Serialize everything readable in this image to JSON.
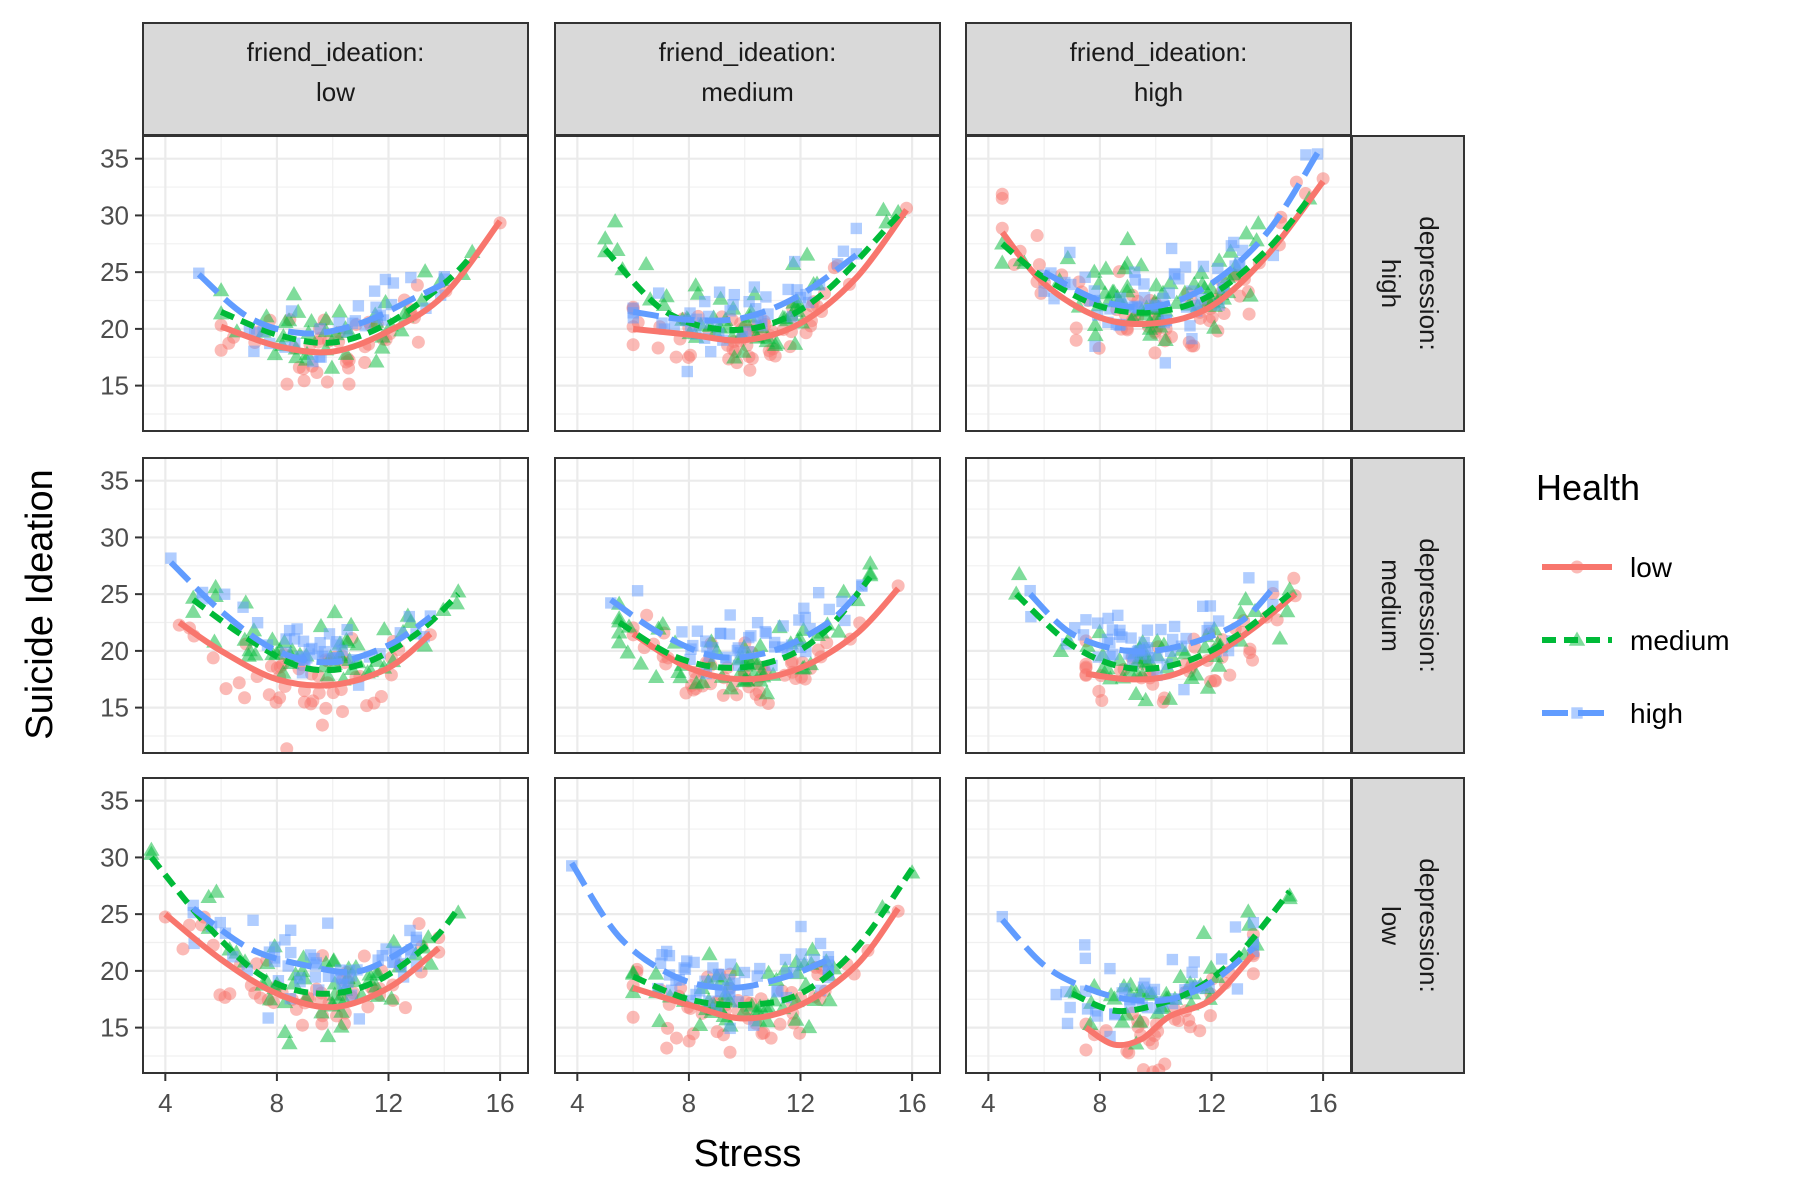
{
  "chart_data": {
    "type": "scatter",
    "xlabel": "Stress",
    "ylabel": "Suicide Ideation",
    "xlim": [
      3.2,
      17.0
    ],
    "ylim": [
      11.0,
      37.0
    ],
    "x_ticks": [
      4,
      8,
      12,
      16
    ],
    "y_ticks": [
      15,
      20,
      25,
      30,
      35
    ],
    "grid": true,
    "legend": {
      "title": "Health",
      "placement": "right",
      "entries": [
        {
          "label": "low",
          "color": "#F8766D",
          "shape": "circle",
          "linetype": "solid"
        },
        {
          "label": "medium",
          "color": "#00BA38",
          "shape": "triangle",
          "linetype": "dashed"
        },
        {
          "label": "high",
          "color": "#619CFF",
          "shape": "square",
          "linetype": "longdash"
        }
      ]
    },
    "columns": [
      "friend_ideation:\nlow",
      "friend_ideation:\nmedium",
      "friend_ideation:\nhigh"
    ],
    "rows": [
      "depression:\nhigh",
      "depression:\nmedium",
      "depression:\nlow"
    ],
    "panels": [
      {
        "row": 0,
        "col": 0,
        "series": [
          {
            "group": "low",
            "x": [
              6,
              8,
              10,
              12,
              14,
              16
            ],
            "y": [
              20.2,
              18.5,
              18.0,
              19.8,
              23.0,
              29.5
            ],
            "scatter": {
              "center": [
                10,
                18.5
              ],
              "spread": [
                2.0,
                2.2
              ],
              "n": 45
            }
          },
          {
            "group": "medium",
            "x": [
              6,
              8,
              10,
              12,
              14,
              15
            ],
            "y": [
              21.5,
              19.5,
              18.8,
              20.5,
              24.0,
              26.5
            ],
            "scatter": {
              "center": [
                10,
                19.5
              ],
              "spread": [
                2.2,
                2.0
              ],
              "n": 40
            }
          },
          {
            "group": "high",
            "x": [
              5.2,
              7,
              9,
              11,
              13,
              14
            ],
            "y": [
              24.8,
              21.0,
              19.6,
              20.5,
              22.8,
              24.0
            ],
            "scatter": {
              "center": [
                10,
                20.5
              ],
              "spread": [
                2.0,
                2.0
              ],
              "n": 30
            }
          }
        ]
      },
      {
        "row": 0,
        "col": 1,
        "series": [
          {
            "group": "low",
            "x": [
              6,
              8,
              10,
              12,
              14,
              15.8
            ],
            "y": [
              20.0,
              19.5,
              19.0,
              20.5,
              24.5,
              30.5
            ],
            "scatter": {
              "center": [
                10,
                19.5
              ],
              "spread": [
                2.2,
                2.2
              ],
              "n": 60
            }
          },
          {
            "group": "medium",
            "x": [
              5,
              7,
              9,
              11,
              13,
              15.5
            ],
            "y": [
              27.0,
              21.8,
              20.0,
              20.5,
              23.5,
              30.0
            ],
            "scatter": {
              "center": [
                10,
                20.5
              ],
              "spread": [
                2.2,
                2.0
              ],
              "n": 55
            }
          },
          {
            "group": "high",
            "x": [
              6,
              8,
              10,
              12,
              14
            ],
            "y": [
              21.5,
              20.8,
              21.0,
              23.0,
              26.5
            ],
            "scatter": {
              "center": [
                10,
                21.5
              ],
              "spread": [
                2.0,
                1.8
              ],
              "n": 45
            }
          }
        ]
      },
      {
        "row": 0,
        "col": 2,
        "series": [
          {
            "group": "low",
            "x": [
              4.5,
              6,
              8,
              10,
              12,
              14,
              16
            ],
            "y": [
              28.5,
              24.0,
              21.0,
              20.5,
              22.0,
              26.5,
              33.0
            ],
            "scatter": {
              "center": [
                10,
                21.5
              ],
              "spread": [
                2.3,
                2.5
              ],
              "n": 70
            }
          },
          {
            "group": "medium",
            "x": [
              4.5,
              6,
              8,
              10,
              12,
              14,
              15.5
            ],
            "y": [
              27.5,
              24.5,
              22.0,
              21.5,
              23.0,
              27.0,
              31.5
            ],
            "scatter": {
              "center": [
                10,
                22.5
              ],
              "spread": [
                2.3,
                2.5
              ],
              "n": 70
            }
          },
          {
            "group": "high",
            "x": [
              6,
              8,
              10,
              12,
              14,
              15.8
            ],
            "y": [
              25.0,
              22.5,
              22.0,
              24.0,
              28.5,
              35.5
            ],
            "scatter": {
              "center": [
                10,
                23.0
              ],
              "spread": [
                2.2,
                2.5
              ],
              "n": 60
            }
          }
        ]
      },
      {
        "row": 1,
        "col": 0,
        "series": [
          {
            "group": "low",
            "x": [
              4.5,
              6,
              8,
              10,
              12,
              13.5
            ],
            "y": [
              22.5,
              20.0,
              17.5,
              17.0,
              18.5,
              21.5
            ],
            "scatter": {
              "center": [
                9.5,
                17.5
              ],
              "spread": [
                2.0,
                2.0
              ],
              "n": 50
            }
          },
          {
            "group": "medium",
            "x": [
              5,
              7,
              9,
              11,
              13,
              14.5
            ],
            "y": [
              24.5,
              21.0,
              18.5,
              18.8,
              21.5,
              25.0
            ],
            "scatter": {
              "center": [
                9.5,
                19.0
              ],
              "spread": [
                2.2,
                2.0
              ],
              "n": 50
            }
          },
          {
            "group": "high",
            "x": [
              4.2,
              6,
              8,
              10,
              12,
              13.5
            ],
            "y": [
              27.8,
              23.5,
              20.0,
              19.0,
              20.5,
              23.0
            ],
            "scatter": {
              "center": [
                9.5,
                20.0
              ],
              "spread": [
                2.0,
                2.0
              ],
              "n": 40
            }
          }
        ]
      },
      {
        "row": 1,
        "col": 1,
        "series": [
          {
            "group": "low",
            "x": [
              6,
              8,
              10,
              12,
              14,
              15.5
            ],
            "y": [
              21.5,
              18.5,
              17.5,
              18.5,
              21.5,
              25.5
            ],
            "scatter": {
              "center": [
                10,
                18.5
              ],
              "spread": [
                2.2,
                2.0
              ],
              "n": 55
            }
          },
          {
            "group": "medium",
            "x": [
              5.5,
              7.5,
              9.5,
              11.5,
              13,
              14.5
            ],
            "y": [
              22.5,
              19.5,
              18.5,
              19.5,
              22.0,
              26.5
            ],
            "scatter": {
              "center": [
                10,
                19.8
              ],
              "spread": [
                2.2,
                2.0
              ],
              "n": 55
            }
          },
          {
            "group": "high",
            "x": [
              5.2,
              7,
              9,
              11,
              13,
              14.2
            ],
            "y": [
              24.5,
              21.5,
              19.5,
              20.0,
              22.5,
              25.5
            ],
            "scatter": {
              "center": [
                10,
                20.5
              ],
              "spread": [
                2.0,
                2.0
              ],
              "n": 45
            }
          }
        ]
      },
      {
        "row": 1,
        "col": 2,
        "series": [
          {
            "group": "low",
            "x": [
              7.5,
              9,
              10.5,
              12,
              13.5,
              15
            ],
            "y": [
              18.0,
              17.5,
              17.8,
              19.5,
              22.0,
              25.0
            ],
            "scatter": {
              "center": [
                10.5,
                18.5
              ],
              "spread": [
                2.0,
                2.0
              ],
              "n": 45
            }
          },
          {
            "group": "medium",
            "x": [
              5,
              7,
              9,
              11,
              13,
              14.8
            ],
            "y": [
              25.0,
              20.5,
              18.5,
              19.0,
              21.5,
              25.0
            ],
            "scatter": {
              "center": [
                10,
                19.5
              ],
              "spread": [
                2.2,
                2.0
              ],
              "n": 50
            }
          },
          {
            "group": "high",
            "x": [
              5.5,
              7,
              9,
              11,
              13,
              14.2
            ],
            "y": [
              25.0,
              21.5,
              20.0,
              20.5,
              22.5,
              25.5
            ],
            "scatter": {
              "center": [
                10,
                20.5
              ],
              "spread": [
                2.0,
                2.0
              ],
              "n": 50
            }
          }
        ]
      },
      {
        "row": 2,
        "col": 0,
        "series": [
          {
            "group": "low",
            "x": [
              4,
              6,
              8,
              10,
              12,
              13.8
            ],
            "y": [
              25.0,
              21.0,
              18.0,
              16.8,
              18.5,
              22.0
            ],
            "scatter": {
              "center": [
                9.5,
                18.0
              ],
              "spread": [
                2.2,
                2.2
              ],
              "n": 55
            }
          },
          {
            "group": "medium",
            "x": [
              3.5,
              5.5,
              7.5,
              9.5,
              11.5,
              13.5,
              14.5
            ],
            "y": [
              30.0,
              24.0,
              19.5,
              18.0,
              19.0,
              22.5,
              25.5
            ],
            "scatter": {
              "center": [
                9.5,
                18.8
              ],
              "spread": [
                2.3,
                2.2
              ],
              "n": 55
            }
          },
          {
            "group": "high",
            "x": [
              5,
              7,
              9,
              11,
              13
            ],
            "y": [
              25.5,
              22.0,
              20.5,
              20.0,
              22.5
            ],
            "scatter": {
              "center": [
                9.5,
                20.0
              ],
              "spread": [
                2.2,
                2.0
              ],
              "n": 55
            }
          }
        ]
      },
      {
        "row": 2,
        "col": 1,
        "series": [
          {
            "group": "low",
            "x": [
              6,
              8,
              10,
              12,
              14,
              15.5
            ],
            "y": [
              18.5,
              17.0,
              15.8,
              17.0,
              20.5,
              25.5
            ],
            "scatter": {
              "center": [
                10,
                17.0
              ],
              "spread": [
                2.2,
                2.0
              ],
              "n": 55
            }
          },
          {
            "group": "medium",
            "x": [
              6,
              8,
              10,
              12,
              14,
              16
            ],
            "y": [
              19.5,
              17.5,
              17.0,
              18.0,
              22.0,
              29.0
            ],
            "scatter": {
              "center": [
                10,
                18.0
              ],
              "spread": [
                2.2,
                2.0
              ],
              "n": 55
            }
          },
          {
            "group": "high",
            "x": [
              3.8,
              5.5,
              7.5,
              9.5,
              11.5,
              13
            ],
            "y": [
              29.5,
              23.0,
              19.5,
              18.5,
              19.5,
              21.0
            ],
            "scatter": {
              "center": [
                9.5,
                19.5
              ],
              "spread": [
                2.2,
                2.0
              ],
              "n": 55
            }
          }
        ]
      },
      {
        "row": 2,
        "col": 2,
        "series": [
          {
            "group": "low",
            "x": [
              7.5,
              8.5,
              9.5,
              10.5,
              12,
              13.5
            ],
            "y": [
              15.0,
              13.5,
              14.0,
              16.0,
              17.5,
              21.5
            ],
            "scatter": {
              "center": [
                10,
                16.5
              ],
              "spread": [
                1.6,
                2.0
              ],
              "n": 35
            }
          },
          {
            "group": "medium",
            "x": [
              7,
              8.5,
              10,
              11.5,
              13,
              14.8
            ],
            "y": [
              18.0,
              16.5,
              17.0,
              18.5,
              21.5,
              27.0
            ],
            "scatter": {
              "center": [
                10,
                18.0
              ],
              "spread": [
                2.0,
                2.0
              ],
              "n": 40
            }
          },
          {
            "group": "high",
            "x": [
              4.5,
              6,
              7.5,
              9,
              10.5,
              12,
              13.5
            ],
            "y": [
              24.5,
              20.5,
              18.5,
              17.5,
              17.5,
              19.0,
              22.0
            ],
            "scatter": {
              "center": [
                9.5,
                18.5
              ],
              "spread": [
                2.2,
                2.2
              ],
              "n": 45
            }
          }
        ]
      }
    ]
  }
}
